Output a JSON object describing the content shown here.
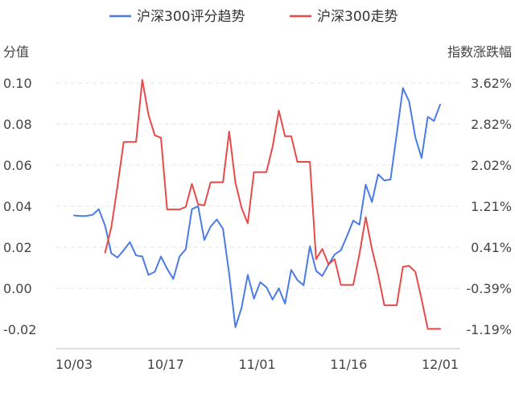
{
  "chart_data": {
    "type": "line",
    "legend_position": "top-center",
    "grid": true,
    "left_axis": {
      "title": "分值",
      "range": [
        -0.02,
        0.1
      ],
      "ticks": [
        "0.10",
        "0.08",
        "0.06",
        "0.04",
        "0.02",
        "0.00",
        "-0.02"
      ]
    },
    "right_axis": {
      "title": "指数涨跌幅",
      "range": [
        -1.19,
        3.62
      ],
      "ticks": [
        "3.62%",
        "2.82%",
        "2.02%",
        "1.21%",
        "0.41%",
        "-0.39%",
        "-1.19%"
      ]
    },
    "x_axis": {
      "ticks": [
        "10/03",
        "10/17",
        "11/01",
        "11/16",
        "12/01"
      ]
    },
    "series": [
      {
        "name": "沪深300评分趋势",
        "axis": "left",
        "color": "#4b7be5",
        "values": [
          0.0355,
          0.0352,
          0.0352,
          0.0358,
          0.0385,
          0.0305,
          0.017,
          0.015,
          0.0185,
          0.0225,
          0.016,
          0.0155,
          0.0065,
          0.008,
          0.0155,
          0.0095,
          0.0045,
          0.0155,
          0.019,
          0.0385,
          0.04,
          0.0235,
          0.03,
          0.0335,
          0.029,
          0.007,
          -0.019,
          -0.0095,
          0.0065,
          -0.005,
          0.003,
          0.0005,
          -0.0055,
          0.0,
          -0.0075,
          0.009,
          0.004,
          0.0015,
          0.0205,
          0.0085,
          0.006,
          0.0115,
          0.0165,
          0.0185,
          0.0255,
          0.033,
          0.031,
          0.0505,
          0.042,
          0.0555,
          0.0525,
          0.053,
          0.075,
          0.0975,
          0.091,
          0.0735,
          0.0635,
          0.0835,
          0.0815,
          0.0895
        ]
      },
      {
        "name": "沪深300走势",
        "axis": "right",
        "color": "#e84a4a",
        "values": [
          null,
          null,
          null,
          null,
          null,
          0.31,
          0.8,
          1.6,
          2.47,
          2.47,
          2.47,
          3.68,
          3.0,
          2.6,
          2.55,
          1.15,
          1.15,
          1.15,
          1.2,
          1.65,
          1.25,
          1.23,
          1.68,
          1.68,
          1.68,
          2.67,
          1.68,
          1.18,
          0.88,
          1.88,
          1.88,
          1.88,
          2.38,
          3.08,
          2.58,
          2.58,
          2.08,
          2.08,
          2.08,
          0.18,
          0.38,
          0.08,
          0.18,
          -0.32,
          -0.32,
          -0.32,
          0.28,
          1.0,
          0.38,
          -0.12,
          -0.72,
          -0.72,
          -0.72,
          0.03,
          0.05,
          -0.07,
          -0.6,
          -1.18,
          -1.18,
          -1.18
        ]
      }
    ]
  }
}
